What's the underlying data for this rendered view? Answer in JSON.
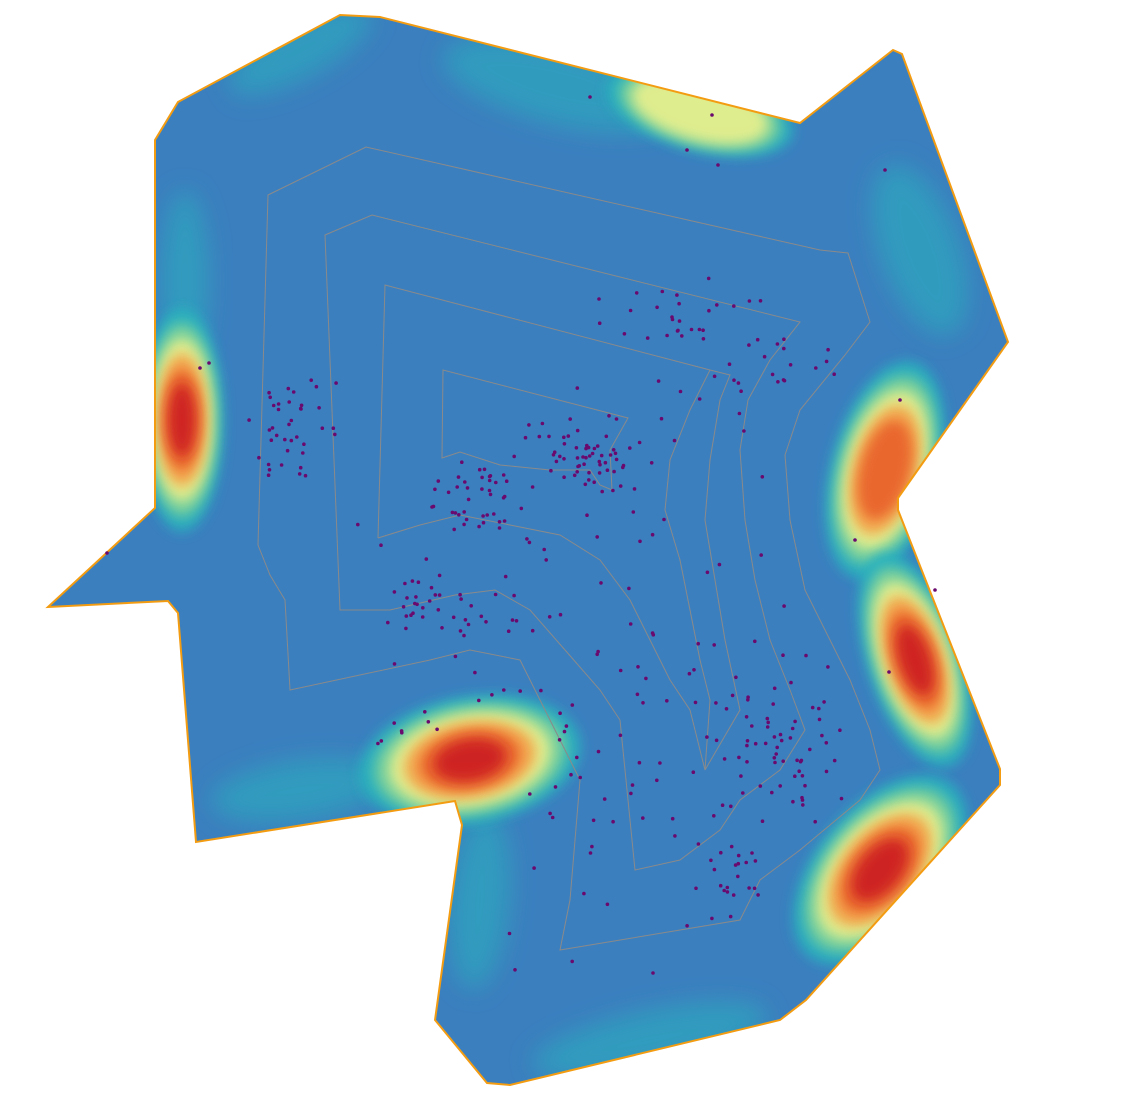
{
  "figure": {
    "kind": "polygon boundary heat band with inner offset contours and scattered points",
    "colors": {
      "background": "#ffffff",
      "outline": "#f39c12",
      "band_low": "#3b7fbf",
      "band_mid1": "#2ab2bd",
      "band_mid2": "#7fd39a",
      "band_mid3": "#eaf08c",
      "band_high1": "#f6a24a",
      "band_high2": "#e8602c",
      "band_peak": "#cc1a23",
      "contour": "#8a8a8a",
      "points": "#6a0a6e"
    },
    "hotspots": [
      {
        "name": "left-edge-hotspot",
        "intensity": 1.0
      },
      {
        "name": "bottom-notch-hotspot",
        "intensity": 1.0
      },
      {
        "name": "right-upper-hotspot",
        "intensity": 0.85
      },
      {
        "name": "right-middle-hotspot",
        "intensity": 0.95
      },
      {
        "name": "right-lower-hotspot",
        "intensity": 1.0
      },
      {
        "name": "top-edge-warm-spot",
        "intensity": 0.55
      }
    ],
    "contour_count": 5,
    "point_count": 420
  }
}
